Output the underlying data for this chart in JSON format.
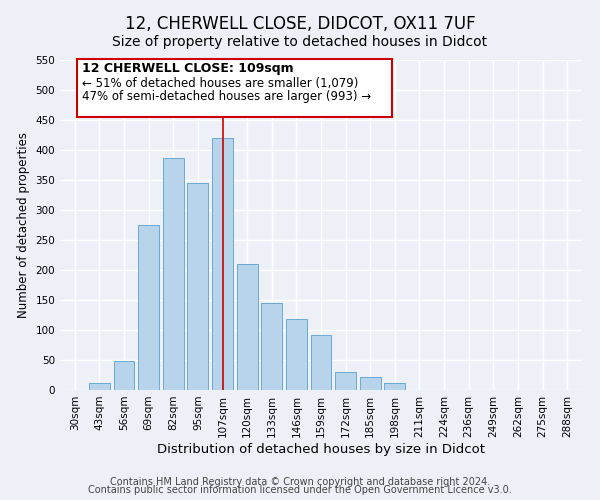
{
  "title": "12, CHERWELL CLOSE, DIDCOT, OX11 7UF",
  "subtitle": "Size of property relative to detached houses in Didcot",
  "xlabel": "Distribution of detached houses by size in Didcot",
  "ylabel": "Number of detached properties",
  "categories": [
    "30sqm",
    "43sqm",
    "56sqm",
    "69sqm",
    "82sqm",
    "95sqm",
    "107sqm",
    "120sqm",
    "133sqm",
    "146sqm",
    "159sqm",
    "172sqm",
    "185sqm",
    "198sqm",
    "211sqm",
    "224sqm",
    "236sqm",
    "249sqm",
    "262sqm",
    "275sqm",
    "288sqm"
  ],
  "values": [
    0,
    12,
    48,
    275,
    387,
    345,
    420,
    210,
    145,
    118,
    92,
    30,
    22,
    12,
    0,
    0,
    0,
    0,
    0,
    0,
    0
  ],
  "highlight_index": 6,
  "bar_color": "#b8d4ea",
  "edge_color": "#6aaad4",
  "vline_color": "#cc0000",
  "ylim": [
    0,
    550
  ],
  "yticks": [
    0,
    50,
    100,
    150,
    200,
    250,
    300,
    350,
    400,
    450,
    500,
    550
  ],
  "annotation_title": "12 CHERWELL CLOSE: 109sqm",
  "annotation_line1": "← 51% of detached houses are smaller (1,079)",
  "annotation_line2": "47% of semi-detached houses are larger (993) →",
  "annotation_box_color": "#ffffff",
  "annotation_box_edge": "#cc0000",
  "footer1": "Contains HM Land Registry data © Crown copyright and database right 2024.",
  "footer2": "Contains public sector information licensed under the Open Government Licence v3.0.",
  "background_color": "#edf1f7",
  "title_fontsize": 12,
  "subtitle_fontsize": 10,
  "xlabel_fontsize": 9.5,
  "ylabel_fontsize": 8.5,
  "tick_fontsize": 7.5,
  "annotation_title_fontsize": 9,
  "annotation_text_fontsize": 8.5,
  "footer_fontsize": 7
}
